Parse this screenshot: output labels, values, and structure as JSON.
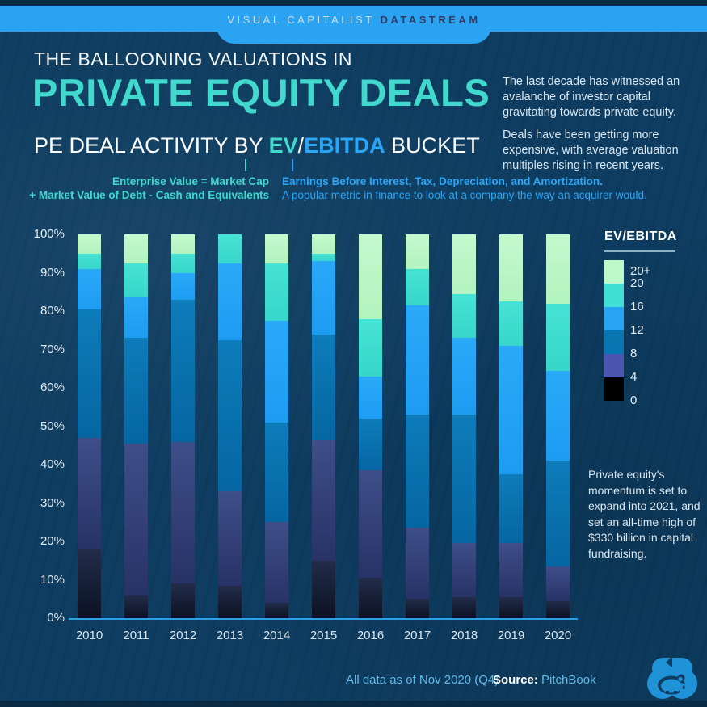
{
  "header": {
    "brand": "VISUAL CAPITALIST",
    "product": "DATASTREAM"
  },
  "title": {
    "kicker": "THE BALLOONING VALUATIONS IN",
    "main": "PRIVATE EQUITY DEALS",
    "sub_prefix": "PE DEAL ACTIVITY BY ",
    "sub_ev": "EV",
    "sub_sep": "/",
    "sub_ebitda": "EBITDA",
    "sub_suffix": " BUCKET"
  },
  "intro": {
    "p1": "The last decade has witnessed an avalanche of investor capital gravitating towards private equity.",
    "p2": "Deals have been getting more expensive, with average valuation multiples rising in recent years."
  },
  "definitions": {
    "ev_line1": "Enterprise Value = Market Cap",
    "ev_line2": "+ Market Value of Debt - Cash and Equivalents",
    "ebitda_bold": "Earnings Before Interest, Tax, Depreciation, and Amortization.",
    "ebitda_normal": "A popular metric in finance to look at a company the way an acquirer would."
  },
  "colors": {
    "background": "#0e3d61",
    "band_blue": "#29a3f2",
    "accent_teal": "#41d9cd",
    "accent_blue": "#2aa6f7",
    "axis_line": "#2f9fe3"
  },
  "chart_data": {
    "type": "bar",
    "stacked": true,
    "unit": "percent",
    "title": "PE deal activity by EV/EBITDA bucket",
    "categories": [
      "2010",
      "2011",
      "2012",
      "2013",
      "2014",
      "2015",
      "2016",
      "2017",
      "2018",
      "2019",
      "2020"
    ],
    "series": [
      {
        "name": "0-4",
        "color_top": "#222c4a",
        "color_bottom": "#0c1222",
        "values": [
          18,
          6,
          9,
          8.5,
          4,
          15,
          10.5,
          5,
          5.5,
          5.5,
          4.5
        ]
      },
      {
        "name": "4-8",
        "color_top": "#3e4e88",
        "color_bottom": "#273366",
        "values": [
          29,
          39.5,
          37,
          24.5,
          21,
          31.5,
          28,
          18.5,
          14,
          14,
          9
        ]
      },
      {
        "name": "8-12",
        "color_top": "#0d7cba",
        "color_bottom": "#0566a2",
        "values": [
          33.5,
          27.5,
          37,
          39.5,
          26,
          27.5,
          13.5,
          29.5,
          33.5,
          18,
          27.5
        ]
      },
      {
        "name": "12-16",
        "color_top": "#2aa8f8",
        "color_bottom": "#1e9cf2",
        "values": [
          10.5,
          10.5,
          7,
          20,
          26.5,
          19,
          11,
          28.5,
          20,
          33.5,
          23.5
        ]
      },
      {
        "name": "16-20",
        "color_top": "#45e2d5",
        "color_bottom": "#38d6ca",
        "values": [
          4,
          9,
          5,
          7.5,
          15,
          2,
          15,
          9.5,
          11.5,
          11.5,
          17.5
        ]
      },
      {
        "name": "20+",
        "color_top": "#c4f9ce",
        "color_bottom": "#b2f3bf",
        "values": [
          5,
          7.5,
          5,
          0,
          7.5,
          5,
          22,
          9,
          15.5,
          17.5,
          18
        ]
      }
    ],
    "y_ticks": [
      "100%",
      "90%",
      "80%",
      "70%",
      "60%",
      "50%",
      "40%",
      "30%",
      "20%",
      "10%",
      "0%"
    ],
    "ylim": [
      0,
      100
    ],
    "grid": false,
    "legend_position": "right"
  },
  "legend": {
    "title": "EV/EBITDA",
    "tick_labels": [
      "20+",
      "20",
      "16",
      "12",
      "8",
      "4",
      "0"
    ],
    "blocks": [
      {
        "bucket": "20+",
        "color": "#bdf8c8"
      },
      {
        "bucket": "16-20",
        "color": "#3fdfd3"
      },
      {
        "bucket": "12-16",
        "color": "#28a4f6"
      },
      {
        "bucket": "8-12",
        "color": "#0877b1"
      },
      {
        "bucket": "4-8",
        "color": "#4c56b2"
      },
      {
        "bucket": "0-4",
        "color": "#000000"
      }
    ]
  },
  "annotation": "Private equity's momentum is set to expand into 2021, and set an all-time high of $330 billion in capital fundraising.",
  "footer": {
    "note": "All data as of Nov 2020 (Q4)",
    "source_label": "Source:",
    "source_value": "PitchBook"
  }
}
